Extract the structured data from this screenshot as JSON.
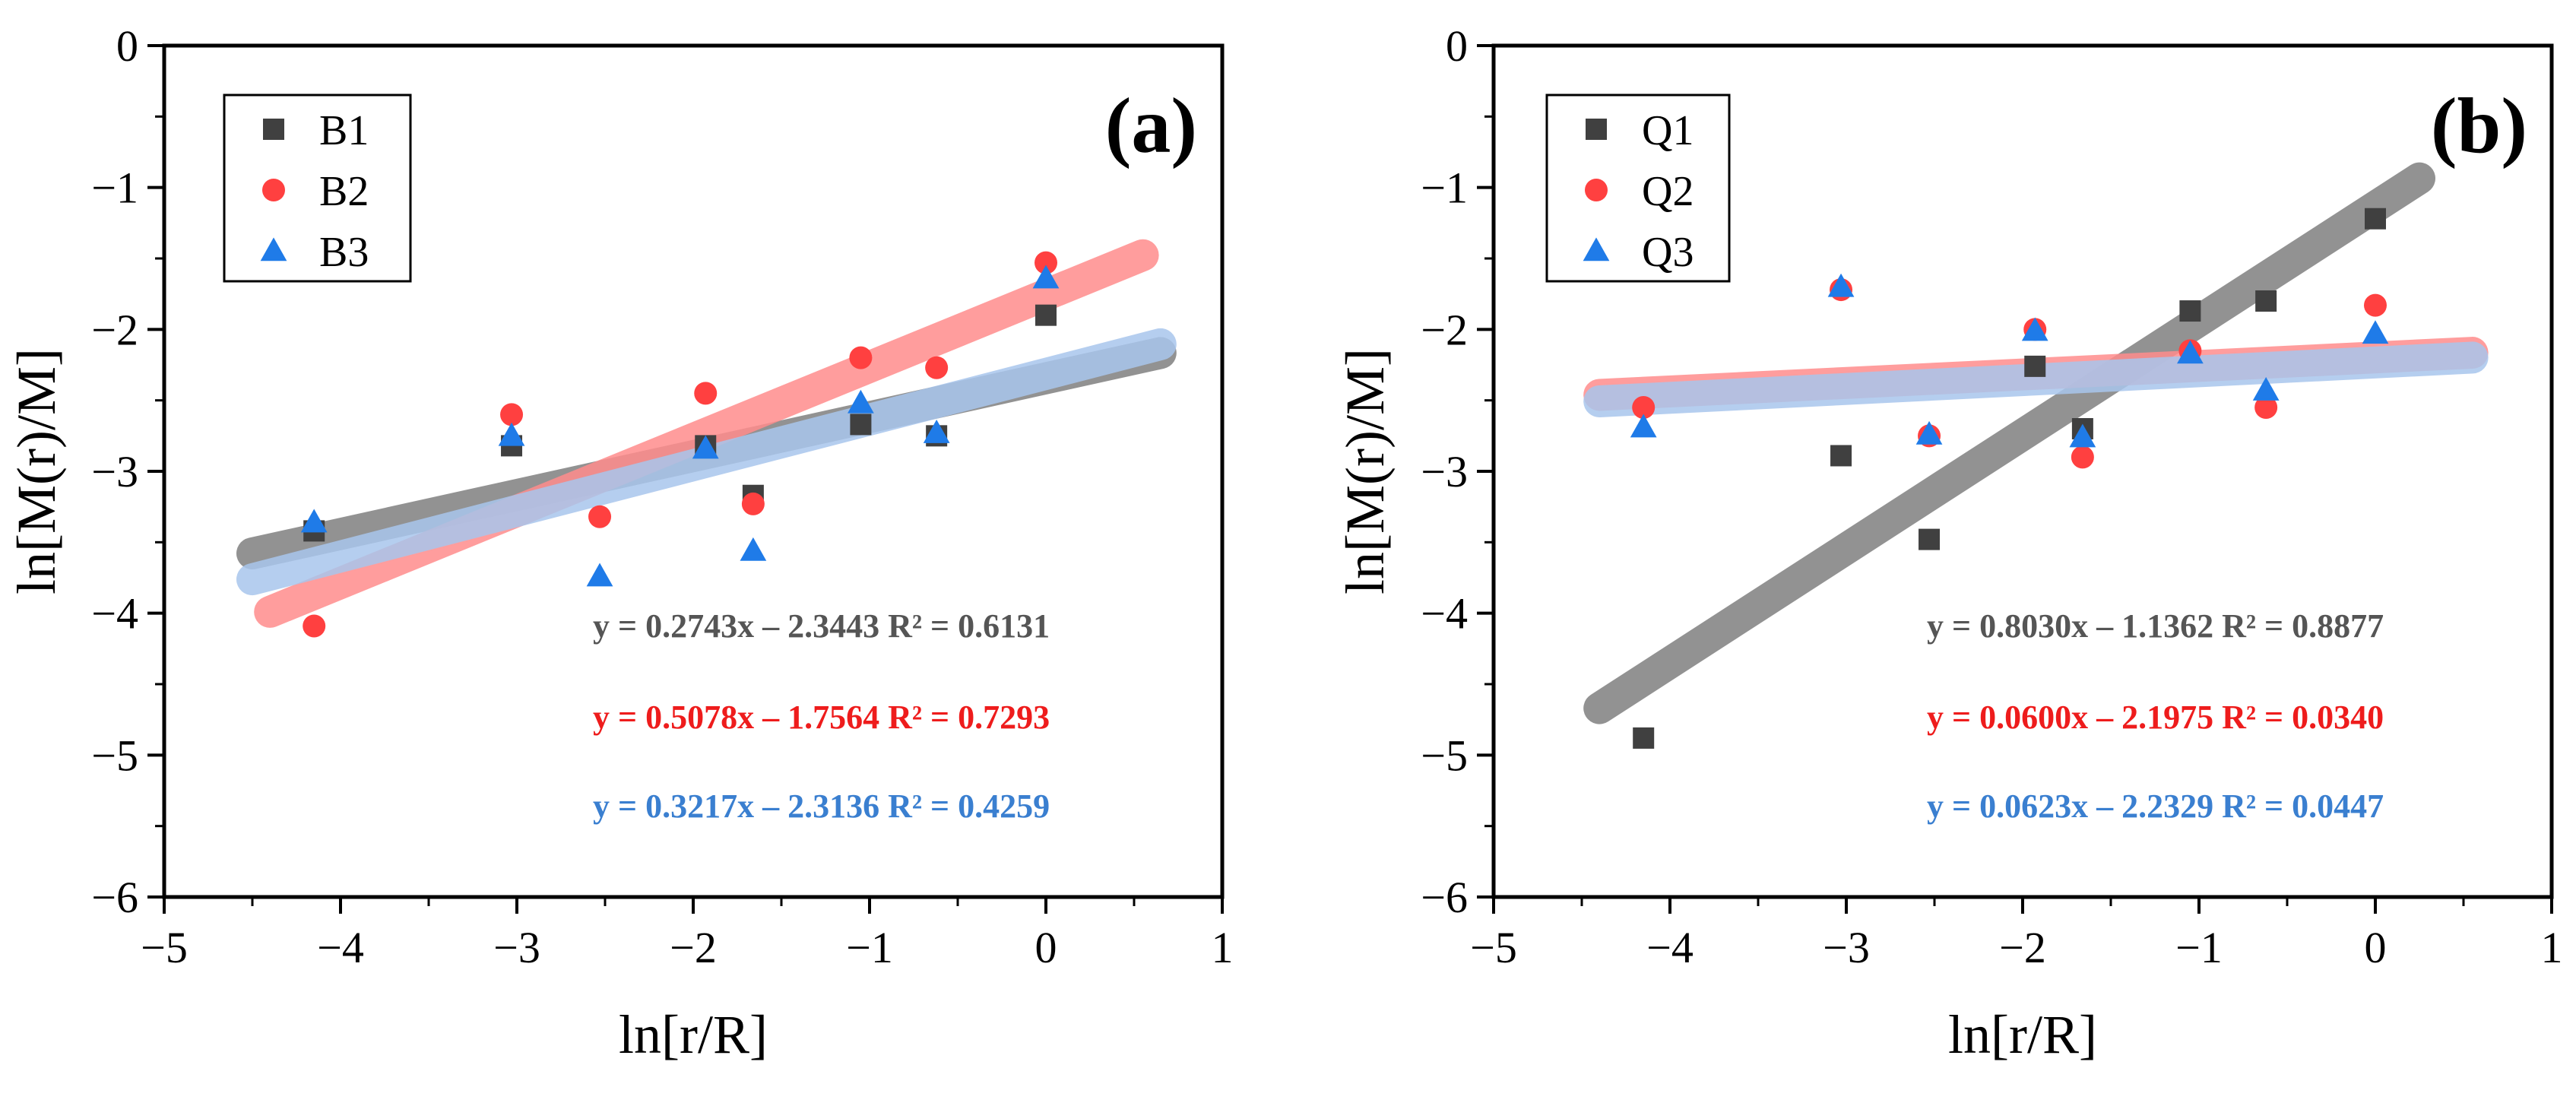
{
  "figure": {
    "description_type": "two-panel scatter with linear fits"
  },
  "chart_data": [
    {
      "type": "scatter",
      "panel_label": "(a)",
      "xlabel": "ln[r/R]",
      "ylabel": "ln[M(r)/M]",
      "xlim": [
        -5,
        1
      ],
      "ylim": [
        -6,
        0
      ],
      "xticks": [
        -5,
        -4,
        -3,
        -2,
        -1,
        0,
        1
      ],
      "yticks": [
        0,
        -1,
        -2,
        -3,
        -4,
        -5,
        -6
      ],
      "xtick_labels": [
        "−5",
        "−4",
        "−3",
        "−2",
        "−1",
        "0",
        "1"
      ],
      "ytick_labels": [
        "0",
        "−1",
        "−2",
        "−3",
        "−4",
        "−5",
        "−6"
      ],
      "legend_position": "top-left",
      "series": [
        {
          "name": "B1",
          "marker": "square",
          "color": "#404040",
          "fit_color": "#7f7f7f",
          "x": [
            -4.15,
            -3.03,
            -1.93,
            -1.66,
            -1.05,
            -0.62,
            0.0
          ],
          "y": [
            -3.42,
            -2.82,
            -2.82,
            -3.17,
            -2.67,
            -2.75,
            -1.9
          ],
          "fit": {
            "slope": 0.2743,
            "intercept": -2.3443,
            "x_range": [
              -4.5,
              0.65
            ]
          },
          "equation": "y = 0.2743x – 2.3443  R² = 0.6131"
        },
        {
          "name": "B2",
          "marker": "circle",
          "color": "#ff4040",
          "fit_color": "#ff8c8c",
          "x": [
            -4.15,
            -3.03,
            -2.53,
            -1.93,
            -1.66,
            -1.05,
            -0.62,
            0.0
          ],
          "y": [
            -4.09,
            -2.6,
            -3.32,
            -2.45,
            -3.23,
            -2.2,
            -2.27,
            -1.53
          ],
          "fit": {
            "slope": 0.5078,
            "intercept": -1.7564,
            "x_range": [
              -4.4,
              0.55
            ]
          },
          "equation": "y = 0.5078x – 1.7564  R² = 0.7293"
        },
        {
          "name": "B3",
          "marker": "triangle",
          "color": "#1f7be8",
          "fit_color": "#a8c6ec",
          "x": [
            -4.15,
            -3.03,
            -2.53,
            -1.93,
            -1.66,
            -1.05,
            -0.62,
            0.0
          ],
          "y": [
            -3.36,
            -2.75,
            -3.74,
            -2.84,
            -3.56,
            -2.52,
            -2.73,
            -1.64
          ],
          "fit": {
            "slope": 0.3217,
            "intercept": -2.3136,
            "x_range": [
              -4.5,
              0.65
            ]
          },
          "equation": "y = 0.3217x – 2.3136  R² = 0.4259"
        }
      ]
    },
    {
      "type": "scatter",
      "panel_label": "(b)",
      "xlabel": "ln[r/R]",
      "ylabel": "ln[M(r)/M]",
      "xlim": [
        -5,
        1
      ],
      "ylim": [
        -6,
        0
      ],
      "xticks": [
        -5,
        -4,
        -3,
        -2,
        -1,
        0,
        1
      ],
      "yticks": [
        0,
        -1,
        -2,
        -3,
        -4,
        -5,
        -6
      ],
      "xtick_labels": [
        "−5",
        "−4",
        "−3",
        "−2",
        "−1",
        "0",
        "1"
      ],
      "ytick_labels": [
        "0",
        "−1",
        "−2",
        "−3",
        "−4",
        "−5",
        "−6"
      ],
      "legend_position": "top-left",
      "series": [
        {
          "name": "Q1",
          "marker": "square",
          "color": "#404040",
          "fit_color": "#7f7f7f",
          "x": [
            -4.15,
            -3.03,
            -2.53,
            -1.93,
            -1.66,
            -1.05,
            -0.62,
            0.0
          ],
          "y": [
            -4.88,
            -2.89,
            -3.48,
            -2.26,
            -2.7,
            -1.87,
            -1.8,
            -1.22
          ],
          "fit": {
            "slope": 0.803,
            "intercept": -1.1362,
            "x_range": [
              -4.4,
              0.25
            ]
          },
          "equation": "y = 0.8030x – 1.1362  R² = 0.8877"
        },
        {
          "name": "Q2",
          "marker": "circle",
          "color": "#ff4040",
          "fit_color": "#ff8c8c",
          "x": [
            -4.15,
            -3.03,
            -2.53,
            -1.93,
            -1.66,
            -1.05,
            -0.62,
            0.0
          ],
          "y": [
            -2.55,
            -1.72,
            -2.75,
            -2.0,
            -2.9,
            -2.15,
            -2.55,
            -1.83
          ],
          "fit": {
            "slope": 0.06,
            "intercept": -2.1975,
            "x_range": [
              -4.4,
              0.55
            ]
          },
          "equation": "y = 0.0600x – 2.1975  R² = 0.0340"
        },
        {
          "name": "Q3",
          "marker": "triangle",
          "color": "#1f7be8",
          "fit_color": "#a8c6ec",
          "x": [
            -4.15,
            -3.03,
            -2.53,
            -1.93,
            -1.66,
            -1.05,
            -0.62,
            0.0
          ],
          "y": [
            -2.69,
            -1.7,
            -2.74,
            -2.01,
            -2.76,
            -2.17,
            -2.43,
            -2.03
          ],
          "fit": {
            "slope": 0.0623,
            "intercept": -2.2329,
            "x_range": [
              -4.4,
              0.55
            ]
          },
          "equation": "y = 0.0623x – 2.2329  R² = 0.0447"
        }
      ]
    }
  ]
}
